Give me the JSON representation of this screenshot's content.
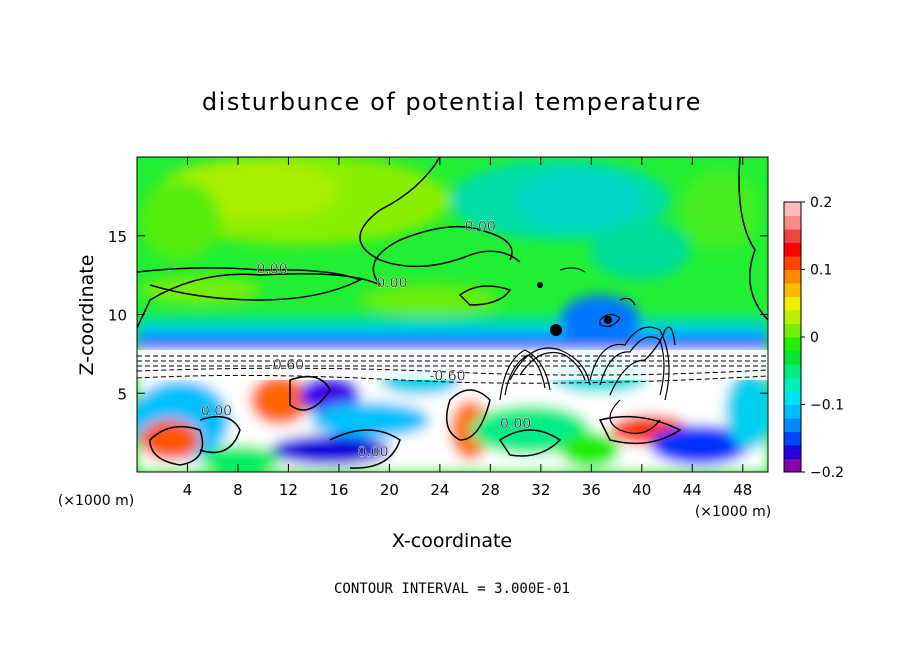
{
  "chart_data": {
    "type": "heatmap",
    "title": "disturbunce of potential temperature",
    "xlabel": "X-coordinate",
    "ylabel": "Z-coordinate",
    "x_unit": "(×1000 m)",
    "x_unit_right": "(×1000 m)",
    "x_ticks": [
      4,
      8,
      12,
      16,
      20,
      24,
      28,
      32,
      36,
      40,
      44,
      48
    ],
    "y_ticks": [
      5,
      10,
      15
    ],
    "xlim": [
      0,
      50
    ],
    "ylim": [
      0,
      20
    ],
    "colorbar": {
      "ticks": [
        -0.2,
        -0.1,
        0,
        0.1,
        0.2
      ],
      "tick_labels": [
        "−0.2",
        "−0.1",
        "0",
        "0.1",
        "0.2"
      ],
      "range": [
        -0.2,
        0.2
      ],
      "colors": [
        "#8800aa",
        "#2200dd",
        "#0044ff",
        "#0088ff",
        "#00bbff",
        "#00e0ee",
        "#00eebb",
        "#00ee77",
        "#00e633",
        "#22ee00",
        "#77ee00",
        "#bbee00",
        "#eeee00",
        "#ffbb00",
        "#ff8800",
        "#ff4400",
        "#ff0000",
        "#ee4444",
        "#ff8888",
        "#ffbbbb"
      ]
    },
    "contour_labels": [
      {
        "text": "0.00",
        "x": 10.7,
        "z": 12.6
      },
      {
        "text": "0.00",
        "x": 20.2,
        "z": 11.7
      },
      {
        "text": "0.00",
        "x": 27.2,
        "z": 15.3
      },
      {
        "text": "-0.60",
        "x": 11.8,
        "z": 6.5
      },
      {
        "text": "-0.60",
        "x": 24.6,
        "z": 5.8
      },
      {
        "text": "0.00",
        "x": 6.3,
        "z": 3.6
      },
      {
        "text": "0.00",
        "x": 18.7,
        "z": 1.0
      },
      {
        "text": "0.00",
        "x": 30.0,
        "z": 2.8
      }
    ],
    "annotation": "CONTOUR INTERVAL = 3.000E-01"
  }
}
